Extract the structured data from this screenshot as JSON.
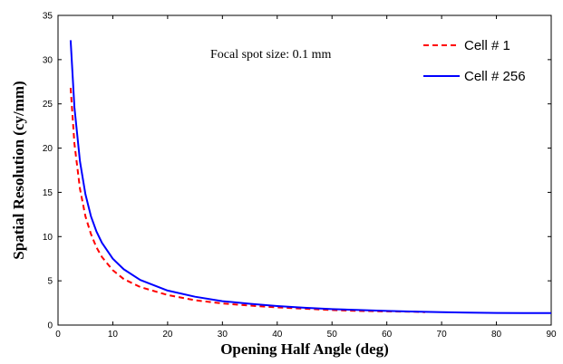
{
  "chart_data": {
    "type": "line",
    "title": "",
    "annotation": "Focal spot size: 0.1 mm",
    "xlabel": "Opening Half Angle (deg)",
    "ylabel": "Spatial Resolution (cy/mm)",
    "xlim": [
      0,
      90
    ],
    "ylim": [
      0,
      35
    ],
    "xticks": [
      0,
      10,
      20,
      30,
      40,
      50,
      60,
      70,
      80,
      90
    ],
    "yticks": [
      0,
      5,
      10,
      15,
      20,
      25,
      30,
      35
    ],
    "grid": false,
    "legend_position": "top-right",
    "series": [
      {
        "name": "Cell # 1",
        "color": "#ff0000",
        "dash": "dashed",
        "x": [
          2.3,
          3,
          4,
          5,
          6,
          7,
          8,
          10,
          12,
          15,
          20,
          25,
          30,
          35,
          40,
          45,
          50,
          55,
          60,
          65,
          67
        ],
        "y": [
          26.8,
          20.5,
          15.4,
          12.3,
          10.3,
          8.8,
          7.7,
          6.2,
          5.2,
          4.3,
          3.4,
          2.8,
          2.45,
          2.2,
          2.0,
          1.85,
          1.7,
          1.6,
          1.55,
          1.5,
          1.45
        ]
      },
      {
        "name": "Cell # 256",
        "color": "#0000ff",
        "dash": "solid",
        "x": [
          2.3,
          3,
          4,
          5,
          6,
          7,
          8,
          10,
          12,
          15,
          20,
          25,
          30,
          35,
          40,
          45,
          50,
          55,
          60,
          65,
          70,
          75,
          80,
          85,
          90
        ],
        "y": [
          32.2,
          24.6,
          18.5,
          14.8,
          12.3,
          10.6,
          9.3,
          7.5,
          6.3,
          5.1,
          3.9,
          3.2,
          2.7,
          2.4,
          2.15,
          1.95,
          1.8,
          1.7,
          1.6,
          1.52,
          1.45,
          1.4,
          1.37,
          1.35,
          1.35
        ]
      }
    ]
  }
}
